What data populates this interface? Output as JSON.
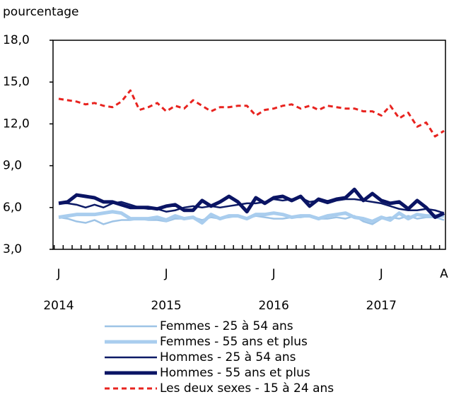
{
  "chart_data": {
    "type": "line",
    "y_axis_label": "pourcentage",
    "categories": [
      "J",
      null,
      null,
      null,
      null,
      null,
      null,
      null,
      null,
      null,
      null,
      null,
      "J",
      null,
      null,
      null,
      null,
      null,
      null,
      null,
      null,
      null,
      null,
      null,
      "J",
      null,
      null,
      null,
      null,
      null,
      null,
      null,
      null,
      null,
      null,
      null,
      "J",
      null,
      null,
      null,
      null,
      null,
      null,
      "A"
    ],
    "category_years": [
      "2014",
      null,
      null,
      null,
      null,
      null,
      null,
      null,
      null,
      null,
      null,
      null,
      "2015",
      null,
      null,
      null,
      null,
      null,
      null,
      null,
      null,
      null,
      null,
      null,
      "2016",
      null,
      null,
      null,
      null,
      null,
      null,
      null,
      null,
      null,
      null,
      null,
      "2017",
      null,
      null,
      null,
      null,
      null,
      null,
      null
    ],
    "ylim": [
      3,
      18
    ],
    "yticks": [
      {
        "value": 3,
        "label": "3,0"
      },
      {
        "value": 6,
        "label": "6,0"
      },
      {
        "value": 9,
        "label": "9,0"
      },
      {
        "value": 12,
        "label": "12,0"
      },
      {
        "value": 15,
        "label": "15,0"
      },
      {
        "value": 18,
        "label": "18,0"
      }
    ],
    "grid": false,
    "series": [
      {
        "name": "Femmes - 25 à 54 ans",
        "color": "#9dc3e6",
        "line_width": 2.5,
        "dashed": false,
        "values": [
          5.3,
          5.2,
          5.0,
          4.9,
          5.1,
          4.8,
          5.0,
          5.1,
          5.1,
          5.2,
          5.1,
          5.1,
          5.0,
          5.2,
          5.2,
          5.3,
          5.1,
          5.3,
          5.2,
          5.3,
          5.4,
          5.2,
          5.4,
          5.3,
          5.2,
          5.2,
          5.3,
          5.3,
          5.4,
          5.2,
          5.2,
          5.3,
          5.2,
          5.4,
          5.0,
          4.8,
          5.2,
          5.3,
          5.2,
          5.4,
          5.2,
          5.3,
          5.3,
          5.1
        ]
      },
      {
        "name": "Femmes - 55 ans et plus",
        "color": "#a9cdee",
        "line_width": 5,
        "dashed": false,
        "values": [
          5.3,
          5.4,
          5.5,
          5.5,
          5.5,
          5.6,
          5.7,
          5.6,
          5.2,
          5.2,
          5.2,
          5.3,
          5.1,
          5.4,
          5.2,
          5.3,
          4.9,
          5.5,
          5.2,
          5.4,
          5.4,
          5.2,
          5.5,
          5.5,
          5.6,
          5.5,
          5.3,
          5.4,
          5.4,
          5.2,
          5.4,
          5.5,
          5.6,
          5.3,
          5.2,
          5.0,
          5.3,
          5.1,
          5.6,
          5.2,
          5.5,
          5.4,
          5.4,
          5.4
        ]
      },
      {
        "name": "Hommes - 25 à 54 ans",
        "color": "#0c1a66",
        "line_width": 2.5,
        "dashed": false,
        "values": [
          6.3,
          6.3,
          6.2,
          6.0,
          6.2,
          6.0,
          6.3,
          6.4,
          6.2,
          6.0,
          5.9,
          5.9,
          5.7,
          5.8,
          6.0,
          6.1,
          6.0,
          6.1,
          6.0,
          6.1,
          6.2,
          6.3,
          6.3,
          6.4,
          6.6,
          6.5,
          6.6,
          6.7,
          6.4,
          6.5,
          6.3,
          6.5,
          6.6,
          6.6,
          6.5,
          6.4,
          6.3,
          6.1,
          5.9,
          5.8,
          5.8,
          5.9,
          5.8,
          5.6
        ]
      },
      {
        "name": "Hommes - 55 ans et plus",
        "color": "#0a1464",
        "line_width": 5,
        "dashed": false,
        "values": [
          6.3,
          6.4,
          6.9,
          6.8,
          6.7,
          6.4,
          6.4,
          6.2,
          6.0,
          6.0,
          6.0,
          5.9,
          6.1,
          6.2,
          5.8,
          5.8,
          6.5,
          6.1,
          6.4,
          6.8,
          6.4,
          5.7,
          6.7,
          6.3,
          6.7,
          6.8,
          6.5,
          6.8,
          6.1,
          6.6,
          6.4,
          6.6,
          6.7,
          7.3,
          6.5,
          7.0,
          6.5,
          6.3,
          6.4,
          5.9,
          6.5,
          6.0,
          5.3,
          5.6
        ]
      },
      {
        "name": "Les deux sexes - 15 à 24 ans",
        "color": "#e8231f",
        "line_width": 3,
        "dashed": true,
        "values": [
          13.8,
          13.7,
          13.6,
          13.4,
          13.5,
          13.3,
          13.2,
          13.6,
          14.4,
          13.0,
          13.2,
          13.5,
          12.9,
          13.3,
          13.1,
          13.7,
          13.3,
          12.9,
          13.2,
          13.2,
          13.3,
          13.3,
          12.6,
          13.0,
          13.1,
          13.3,
          13.4,
          13.1,
          13.3,
          13.0,
          13.3,
          13.2,
          13.1,
          13.1,
          12.9,
          12.9,
          12.6,
          13.3,
          12.4,
          12.8,
          11.8,
          12.1,
          11.1,
          11.5
        ]
      }
    ]
  }
}
